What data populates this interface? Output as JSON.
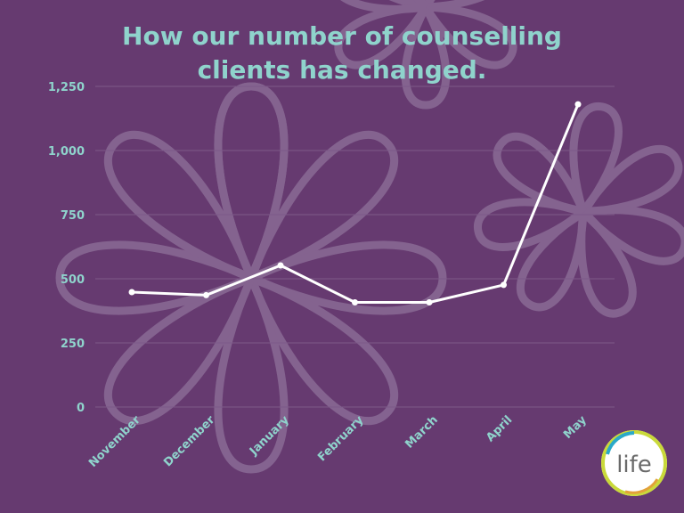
{
  "chart_data": {
    "type": "line",
    "title": "How our number of counselling clients has changed.",
    "categories": [
      "November",
      "December",
      "January",
      "February",
      "March",
      "April",
      "May"
    ],
    "values": [
      448,
      436,
      552,
      408,
      408,
      476,
      1180
    ],
    "ylim": [
      0,
      1250
    ],
    "yticks": [
      0,
      250,
      500,
      750,
      1000,
      1250
    ],
    "ytick_labels": [
      "0",
      "250",
      "500",
      "750",
      "1,000",
      "1,250"
    ],
    "grid": true,
    "legend": "none",
    "line_color": "#ffffff",
    "tick_color": "#8fd3cc",
    "grid_color": "#7d5a89"
  },
  "logo": {
    "text": "life"
  },
  "colors": {
    "background": "#663a70",
    "flower": "#8a6b95",
    "title": "#8fd3cc"
  }
}
